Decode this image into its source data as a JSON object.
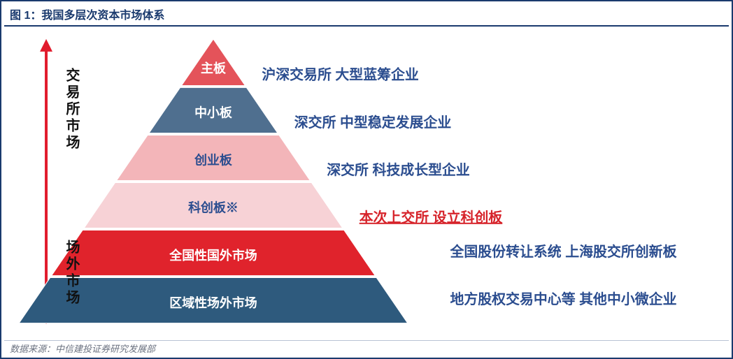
{
  "title": "图 1：我国多层次资本市场体系",
  "source": "数据来源：中信建投证券研究发展部",
  "title_color": "#1a3a6e",
  "canvas_bg": "#ffffff",
  "arrow_color": "#e11b2c",
  "left_labels": {
    "exchange": "交易所市场",
    "otc": "场外市场"
  },
  "tiers": [
    {
      "label": "主板",
      "desc": "沪深交易所 大型蓝筹企业",
      "fill": "#e4535a",
      "text": "#ffffff",
      "desc_color": "#2b4d8f"
    },
    {
      "label": "中小板",
      "desc": "深交所 中型稳定发展企业",
      "fill": "#4f6f8f",
      "text": "#ffffff",
      "desc_color": "#2b4d8f"
    },
    {
      "label": "创业板",
      "desc": "深交所 科技成长型企业",
      "fill": "#f3b5b9",
      "text": "#2b4d8f",
      "desc_color": "#2b4d8f"
    },
    {
      "label": "科创板※",
      "desc": "本次上交所 设立科创板",
      "fill": "#f7d2d6",
      "text": "#2b4d8f",
      "desc_color": "#d6232a"
    },
    {
      "label": "全国性国外市场",
      "desc": "全国股份转让系统 上海股交所创新板",
      "fill": "#e0232c",
      "text": "#ffffff",
      "desc_color": "#2b4d8f"
    },
    {
      "label": "区域性场外市场",
      "desc": "地方股权交易中心等 其他中小微企业",
      "fill": "#2e5a7d",
      "text": "#ffffff",
      "desc_color": "#2b4d8f"
    }
  ],
  "style": {
    "tier_label_fontsize": 18,
    "tier_label_weight": "bold",
    "desc_fontsize": 20,
    "desc_weight": "bold",
    "gap": 3,
    "tier_stroke": "#ffffff"
  }
}
